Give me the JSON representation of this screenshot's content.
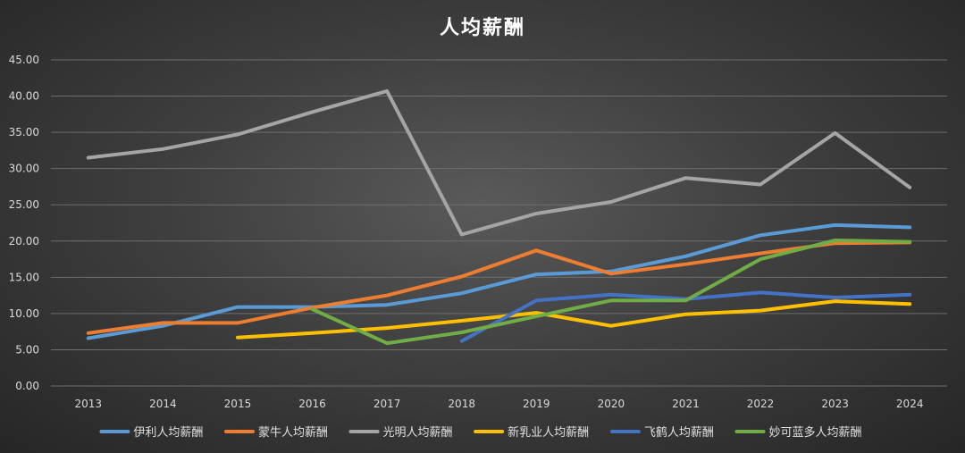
{
  "chart_data": {
    "type": "line",
    "title": "人均薪酬",
    "xlabel": "",
    "ylabel": "",
    "ylim": [
      0,
      45
    ],
    "yticks": [
      "0.00",
      "5.00",
      "10.00",
      "15.00",
      "20.00",
      "25.00",
      "30.00",
      "35.00",
      "40.00",
      "45.00"
    ],
    "grid": true,
    "legend_position": "bottom",
    "categories": [
      "2013",
      "2014",
      "2015",
      "2016",
      "2017",
      "2018",
      "2019",
      "2020",
      "2021",
      "2022",
      "2023",
      "2024"
    ],
    "series": [
      {
        "name": "伊利人均薪酬",
        "color": "#5B9BD5",
        "values": [
          6.6,
          8.3,
          10.9,
          10.9,
          11.2,
          12.8,
          15.4,
          15.8,
          17.9,
          20.8,
          22.2,
          21.9
        ]
      },
      {
        "name": "蒙牛人均薪酬",
        "color": "#ED7D31",
        "values": [
          7.3,
          8.7,
          8.7,
          10.8,
          12.5,
          15.1,
          18.7,
          15.5,
          16.8,
          18.3,
          19.7,
          19.8
        ]
      },
      {
        "name": "光明人均薪酬",
        "color": "#A5A5A5",
        "values": [
          31.5,
          32.7,
          34.7,
          37.8,
          40.7,
          20.9,
          23.8,
          25.4,
          28.7,
          27.8,
          34.9,
          27.4
        ]
      },
      {
        "name": "新乳业人均薪酬",
        "color": "#FFC000",
        "values": [
          null,
          null,
          6.7,
          7.3,
          8.0,
          9.0,
          10.1,
          8.3,
          9.9,
          10.4,
          11.7,
          11.3
        ]
      },
      {
        "name": "飞鹤人均薪酬",
        "color": "#4472C4",
        "values": [
          null,
          null,
          null,
          null,
          null,
          6.2,
          11.8,
          12.6,
          12.0,
          12.9,
          12.2,
          12.6
        ]
      },
      {
        "name": "妙可蓝多人均薪酬",
        "color": "#70AD47",
        "values": [
          null,
          null,
          null,
          10.6,
          5.9,
          7.4,
          9.6,
          11.8,
          11.8,
          17.5,
          20.1,
          19.9
        ]
      }
    ]
  }
}
